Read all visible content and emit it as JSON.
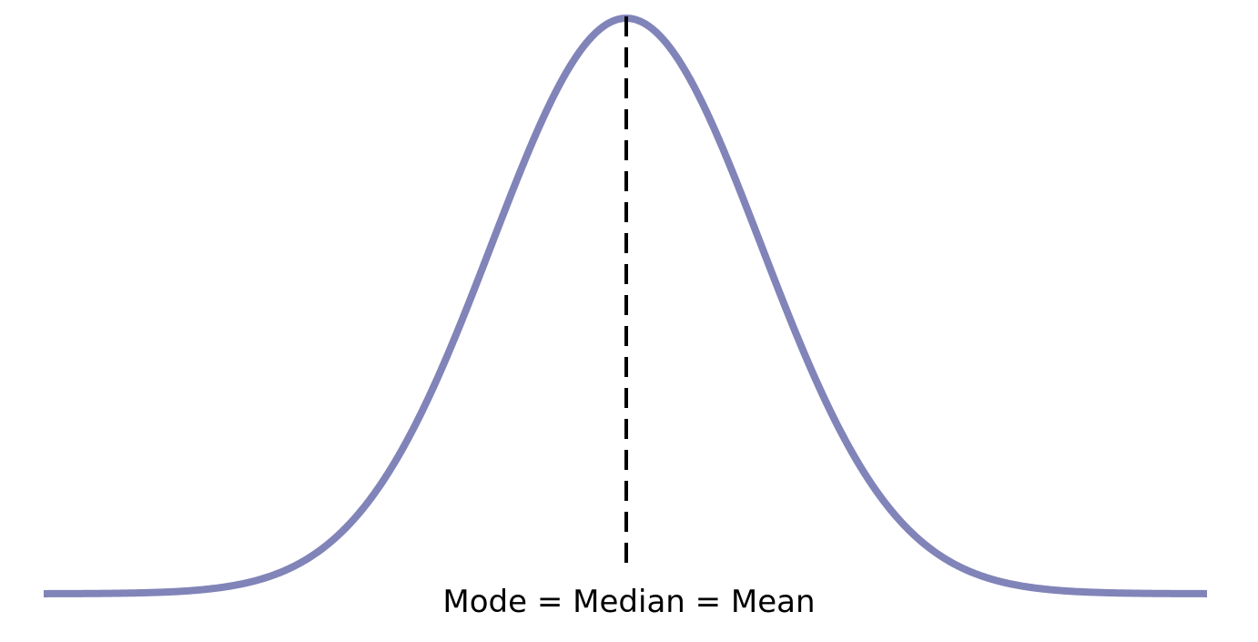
{
  "diagram": {
    "caption": "Mode = Median = Mean",
    "curve_color": "#8184b8",
    "line_color": "#000000",
    "line_style": "dashed"
  }
}
